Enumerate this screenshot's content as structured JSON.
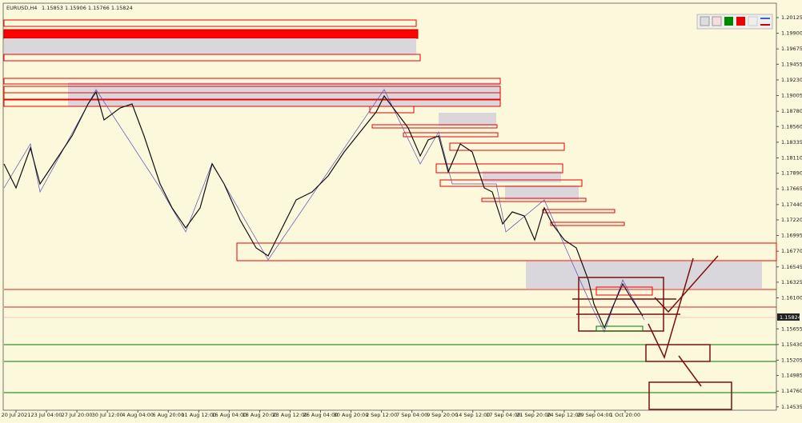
{
  "header": {
    "symbol": "EURUSD,H4",
    "quote": "1.15853 1.15906 1.15766 1.15824"
  },
  "price_axis": [
    "1.20125",
    "1.19900",
    "1.19675",
    "1.19455",
    "1.19230",
    "1.19005",
    "1.18780",
    "1.18560",
    "1.18335",
    "1.18110",
    "1.17890",
    "1.17665",
    "1.17440",
    "1.17220",
    "1.16995",
    "1.16770",
    "1.16545",
    "1.16325",
    "1.16100",
    "1.15655",
    "1.15430",
    "1.15205",
    "1.14985",
    "1.14760",
    "1.14535"
  ],
  "current_price": "1.15824",
  "time_axis": [
    "20 Jul 2021",
    "23 Jul 04:00",
    "27 Jul 20:00",
    "30 Jul 12:00",
    "4 Aug 04:00",
    "6 Aug 20:00",
    "11 Aug 12:00",
    "16 Aug 04:00",
    "18 Aug 20:00",
    "23 Aug 12:00",
    "26 Aug 04:00",
    "30 Aug 20:00",
    "2 Sep 12:00",
    "7 Sep 04:00",
    "9 Sep 20:00",
    "14 Sep 12:00",
    "17 Sep 04:00",
    "21 Sep 20:00",
    "24 Sep 12:00",
    "29 Sep 04:00",
    "1 Oct 20:00"
  ]
}
